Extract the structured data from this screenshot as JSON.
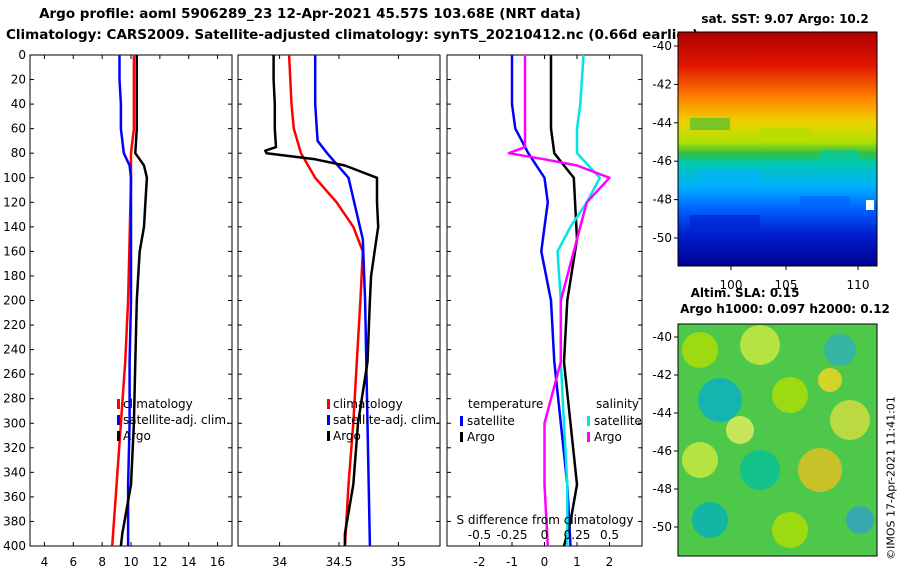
{
  "header": {
    "line1": "Argo profile: aoml 5906289_23 12-Apr-2021 45.57S 103.68E (NRT data)",
    "line2": "Climatology: CARS2009. Satellite-adjusted climatology: synTS_20210412.nc (0.66d earlier)"
  },
  "map_top": {
    "title": "sat. SST: 9.07 Argo: 10.2",
    "lat_ticks": [
      "-40",
      "-42",
      "-44",
      "-46",
      "-48",
      "-50"
    ],
    "lon_ticks": [
      "100",
      "105",
      "110"
    ]
  },
  "map_bottom": {
    "title_line1": "Altim. SLA: 0.15",
    "title_line2": "Argo h1000: 0.097 h2000: 0.12",
    "lat_ticks": [
      "-40",
      "-42",
      "-44",
      "-46",
      "-48",
      "-50"
    ]
  },
  "stamp": "©IMOS 17-Apr-2021 11:41:01",
  "colors": {
    "climatology": "#ff0000",
    "satellite": "#0000ff",
    "argo": "#000000",
    "sat_salinity": "#00e5e5",
    "argo_salinity": "#ff00ff"
  },
  "chart_data": [
    {
      "type": "line",
      "panel": "temperature",
      "ylabel": "Depth",
      "ylim": [
        400,
        0
      ],
      "xlim": [
        3,
        17
      ],
      "y_ticks": [
        0,
        20,
        40,
        60,
        80,
        100,
        120,
        140,
        160,
        180,
        200,
        220,
        240,
        260,
        280,
        300,
        320,
        340,
        360,
        380,
        400
      ],
      "x_ticks": [
        4,
        6,
        8,
        10,
        12,
        14,
        16
      ],
      "legend": [
        "climatology",
        "satellite-adj. clim.",
        "Argo"
      ],
      "series": [
        {
          "name": "climatology",
          "depth": [
            0,
            60,
            80,
            100,
            150,
            200,
            250,
            300,
            350,
            400
          ],
          "values": [
            10.2,
            10.2,
            10.0,
            10.0,
            9.9,
            9.8,
            9.6,
            9.3,
            9.0,
            8.7
          ]
        },
        {
          "name": "satellite-adj. clim.",
          "depth": [
            0,
            20,
            40,
            60,
            80,
            90,
            100,
            150,
            200,
            250,
            300,
            350,
            400
          ],
          "values": [
            9.2,
            9.2,
            9.3,
            9.3,
            9.5,
            9.9,
            10.0,
            10.0,
            10.0,
            9.9,
            9.9,
            9.8,
            9.8
          ]
        },
        {
          "name": "Argo",
          "depth": [
            0,
            20,
            40,
            60,
            80,
            85,
            90,
            100,
            120,
            140,
            160,
            180,
            200,
            250,
            300,
            350,
            390,
            400
          ],
          "values": [
            10.4,
            10.4,
            10.4,
            10.4,
            10.3,
            10.6,
            10.9,
            11.1,
            11.0,
            10.9,
            10.6,
            10.5,
            10.4,
            10.3,
            10.2,
            10.0,
            9.4,
            9.3
          ]
        }
      ]
    },
    {
      "type": "line",
      "panel": "salinity",
      "ylim": [
        400,
        0
      ],
      "xlim": [
        33.65,
        35.35
      ],
      "x_ticks": [
        34,
        34.5,
        35
      ],
      "legend": [
        "climatology",
        "satellite-adj. clim.",
        "Argo"
      ],
      "series": [
        {
          "name": "climatology",
          "depth": [
            0,
            40,
            60,
            80,
            100,
            120,
            140,
            160,
            200,
            250,
            300,
            350,
            400
          ],
          "values": [
            34.08,
            34.1,
            34.12,
            34.18,
            34.3,
            34.48,
            34.62,
            34.7,
            34.68,
            34.65,
            34.62,
            34.58,
            34.55
          ]
        },
        {
          "name": "satellite-adj. clim.",
          "depth": [
            0,
            40,
            70,
            80,
            100,
            150,
            200,
            300,
            400
          ],
          "values": [
            34.3,
            34.3,
            34.32,
            34.4,
            34.58,
            34.7,
            34.72,
            34.74,
            34.76
          ]
        },
        {
          "name": "Argo",
          "depth": [
            0,
            20,
            40,
            60,
            75,
            78,
            80,
            85,
            90,
            100,
            120,
            140,
            160,
            180,
            200,
            250,
            300,
            350,
            390,
            400
          ],
          "values": [
            33.95,
            33.95,
            33.96,
            33.96,
            33.97,
            33.88,
            33.89,
            34.3,
            34.55,
            34.82,
            34.82,
            34.83,
            34.8,
            34.77,
            34.76,
            34.74,
            34.66,
            34.62,
            34.55,
            34.55
          ]
        }
      ]
    },
    {
      "type": "line",
      "panel": "difference from climatology",
      "ylim": [
        400,
        0
      ],
      "xlim": [
        -3,
        3
      ],
      "x_ticks": [
        -2,
        -1,
        0,
        1,
        2
      ],
      "x_ticks_top": [
        -0.5,
        -0.25,
        0,
        0.25,
        0.5
      ],
      "xlabel_top": "S difference from climatology",
      "legend_temperature": {
        "title": "temperature",
        "entries": [
          "satellite",
          "Argo"
        ]
      },
      "legend_salinity": {
        "title": "salinity",
        "entries": [
          "satellite",
          "Argo"
        ]
      },
      "series": [
        {
          "name": "temperature satellite",
          "depth": [
            0,
            40,
            60,
            80,
            100,
            120,
            140,
            160,
            200,
            250,
            300,
            350,
            400
          ],
          "values": [
            -1.0,
            -1.0,
            -0.9,
            -0.5,
            0.0,
            0.1,
            0.0,
            -0.1,
            0.2,
            0.3,
            0.5,
            0.7,
            0.8
          ]
        },
        {
          "name": "temperature Argo",
          "depth": [
            0,
            60,
            80,
            90,
            100,
            150,
            200,
            250,
            300,
            350,
            380,
            400
          ],
          "values": [
            0.2,
            0.2,
            0.3,
            0.6,
            0.9,
            1.0,
            0.7,
            0.6,
            0.8,
            1.0,
            0.8,
            0.6
          ]
        },
        {
          "name": "salinity satellite",
          "depth": [
            0,
            40,
            60,
            80,
            100,
            120,
            140,
            160,
            200,
            250,
            300,
            350,
            400
          ],
          "values": [
            1.2,
            1.1,
            1.0,
            1.0,
            1.7,
            1.3,
            0.8,
            0.4,
            0.5,
            0.5,
            0.6,
            0.7,
            0.7
          ]
        },
        {
          "name": "salinity Argo",
          "depth": [
            0,
            40,
            60,
            75,
            80,
            85,
            90,
            100,
            120,
            150,
            200,
            250,
            300,
            350,
            400
          ],
          "values": [
            -0.6,
            -0.6,
            -0.6,
            -0.6,
            -1.1,
            0.0,
            1.0,
            2.0,
            1.3,
            1.0,
            0.5,
            0.5,
            0.0,
            0.0,
            0.1
          ]
        }
      ]
    }
  ]
}
